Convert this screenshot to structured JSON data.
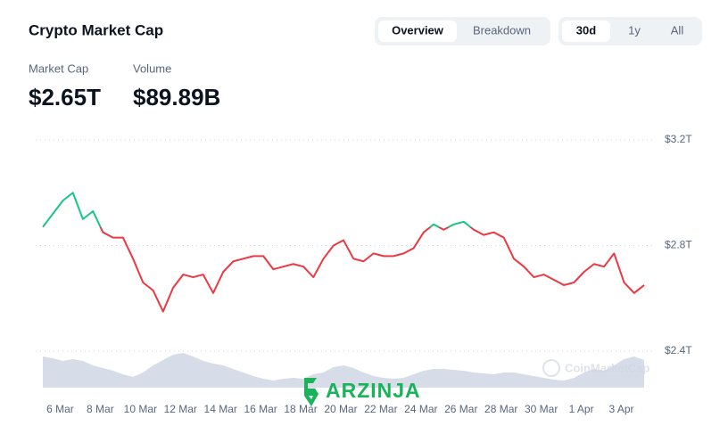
{
  "title": "Crypto Market Cap",
  "tabs": [
    {
      "label": "Overview",
      "selected": true
    },
    {
      "label": "Breakdown",
      "selected": false
    }
  ],
  "ranges": [
    {
      "label": "30d",
      "selected": true
    },
    {
      "label": "1y",
      "selected": false
    },
    {
      "label": "All",
      "selected": false
    }
  ],
  "stats": [
    {
      "label": "Market Cap",
      "value": "$2.65T"
    },
    {
      "label": "Volume",
      "value": "$89.89B"
    }
  ],
  "watermarks": [
    "ARZINJA",
    "CoinMarketCap"
  ],
  "chart_data": {
    "type": "line",
    "categories": [
      null,
      null,
      "6 Mar",
      null,
      null,
      null,
      "8 Mar",
      null,
      null,
      null,
      "10 Mar",
      null,
      null,
      null,
      "12 Mar",
      null,
      null,
      null,
      "14 Mar",
      null,
      null,
      null,
      "16 Mar",
      null,
      null,
      null,
      "18 Mar",
      null,
      null,
      null,
      "20 Mar",
      null,
      null,
      null,
      "22 Mar",
      null,
      null,
      null,
      "24 Mar",
      null,
      null,
      null,
      "26 Mar",
      null,
      null,
      null,
      "28 Mar",
      null,
      null,
      null,
      "30 Mar",
      null,
      null,
      null,
      "1 Apr",
      null,
      null,
      null,
      "3 Apr",
      null,
      null
    ],
    "series": [
      {
        "name": "Market Cap",
        "color": "#ea3943",
        "up_color": "#16c784",
        "values": [
          2.87,
          2.92,
          2.97,
          3.0,
          2.9,
          2.93,
          2.85,
          2.83,
          2.83,
          2.75,
          2.66,
          2.63,
          2.55,
          2.64,
          2.69,
          2.68,
          2.69,
          2.62,
          2.7,
          2.74,
          2.75,
          2.76,
          2.76,
          2.71,
          2.72,
          2.73,
          2.72,
          2.68,
          2.75,
          2.8,
          2.82,
          2.75,
          2.74,
          2.77,
          2.76,
          2.76,
          2.77,
          2.79,
          2.85,
          2.88,
          2.86,
          2.88,
          2.89,
          2.86,
          2.84,
          2.85,
          2.83,
          2.75,
          2.72,
          2.68,
          2.69,
          2.67,
          2.65,
          2.66,
          2.7,
          2.73,
          2.72,
          2.77,
          2.66,
          2.62,
          2.65
        ]
      },
      {
        "name": "Volume",
        "color": "#cfd6e4",
        "axis": "y2",
        "values": [
          175,
          165,
          150,
          160,
          150,
          125,
          110,
          95,
          75,
          60,
          85,
          125,
          155,
          185,
          195,
          175,
          150,
          135,
          125,
          105,
          85,
          65,
          50,
          40,
          50,
          55,
          50,
          75,
          85,
          115,
          125,
          110,
          85,
          65,
          55,
          50,
          55,
          75,
          95,
          105,
          105,
          100,
          95,
          85,
          80,
          75,
          85,
          85,
          75,
          65,
          55,
          45,
          40,
          55,
          85,
          105,
          95,
          125,
          160,
          175,
          155
        ]
      }
    ],
    "ylim": [
      2.4,
      3.2
    ],
    "yticks": [
      {
        "value": 3.2,
        "label": "$3.2T"
      },
      {
        "value": 2.8,
        "label": "$2.8T"
      },
      {
        "value": 2.4,
        "label": "$2.4T"
      }
    ],
    "y2lim": [
      0,
      200
    ],
    "grid": true
  }
}
